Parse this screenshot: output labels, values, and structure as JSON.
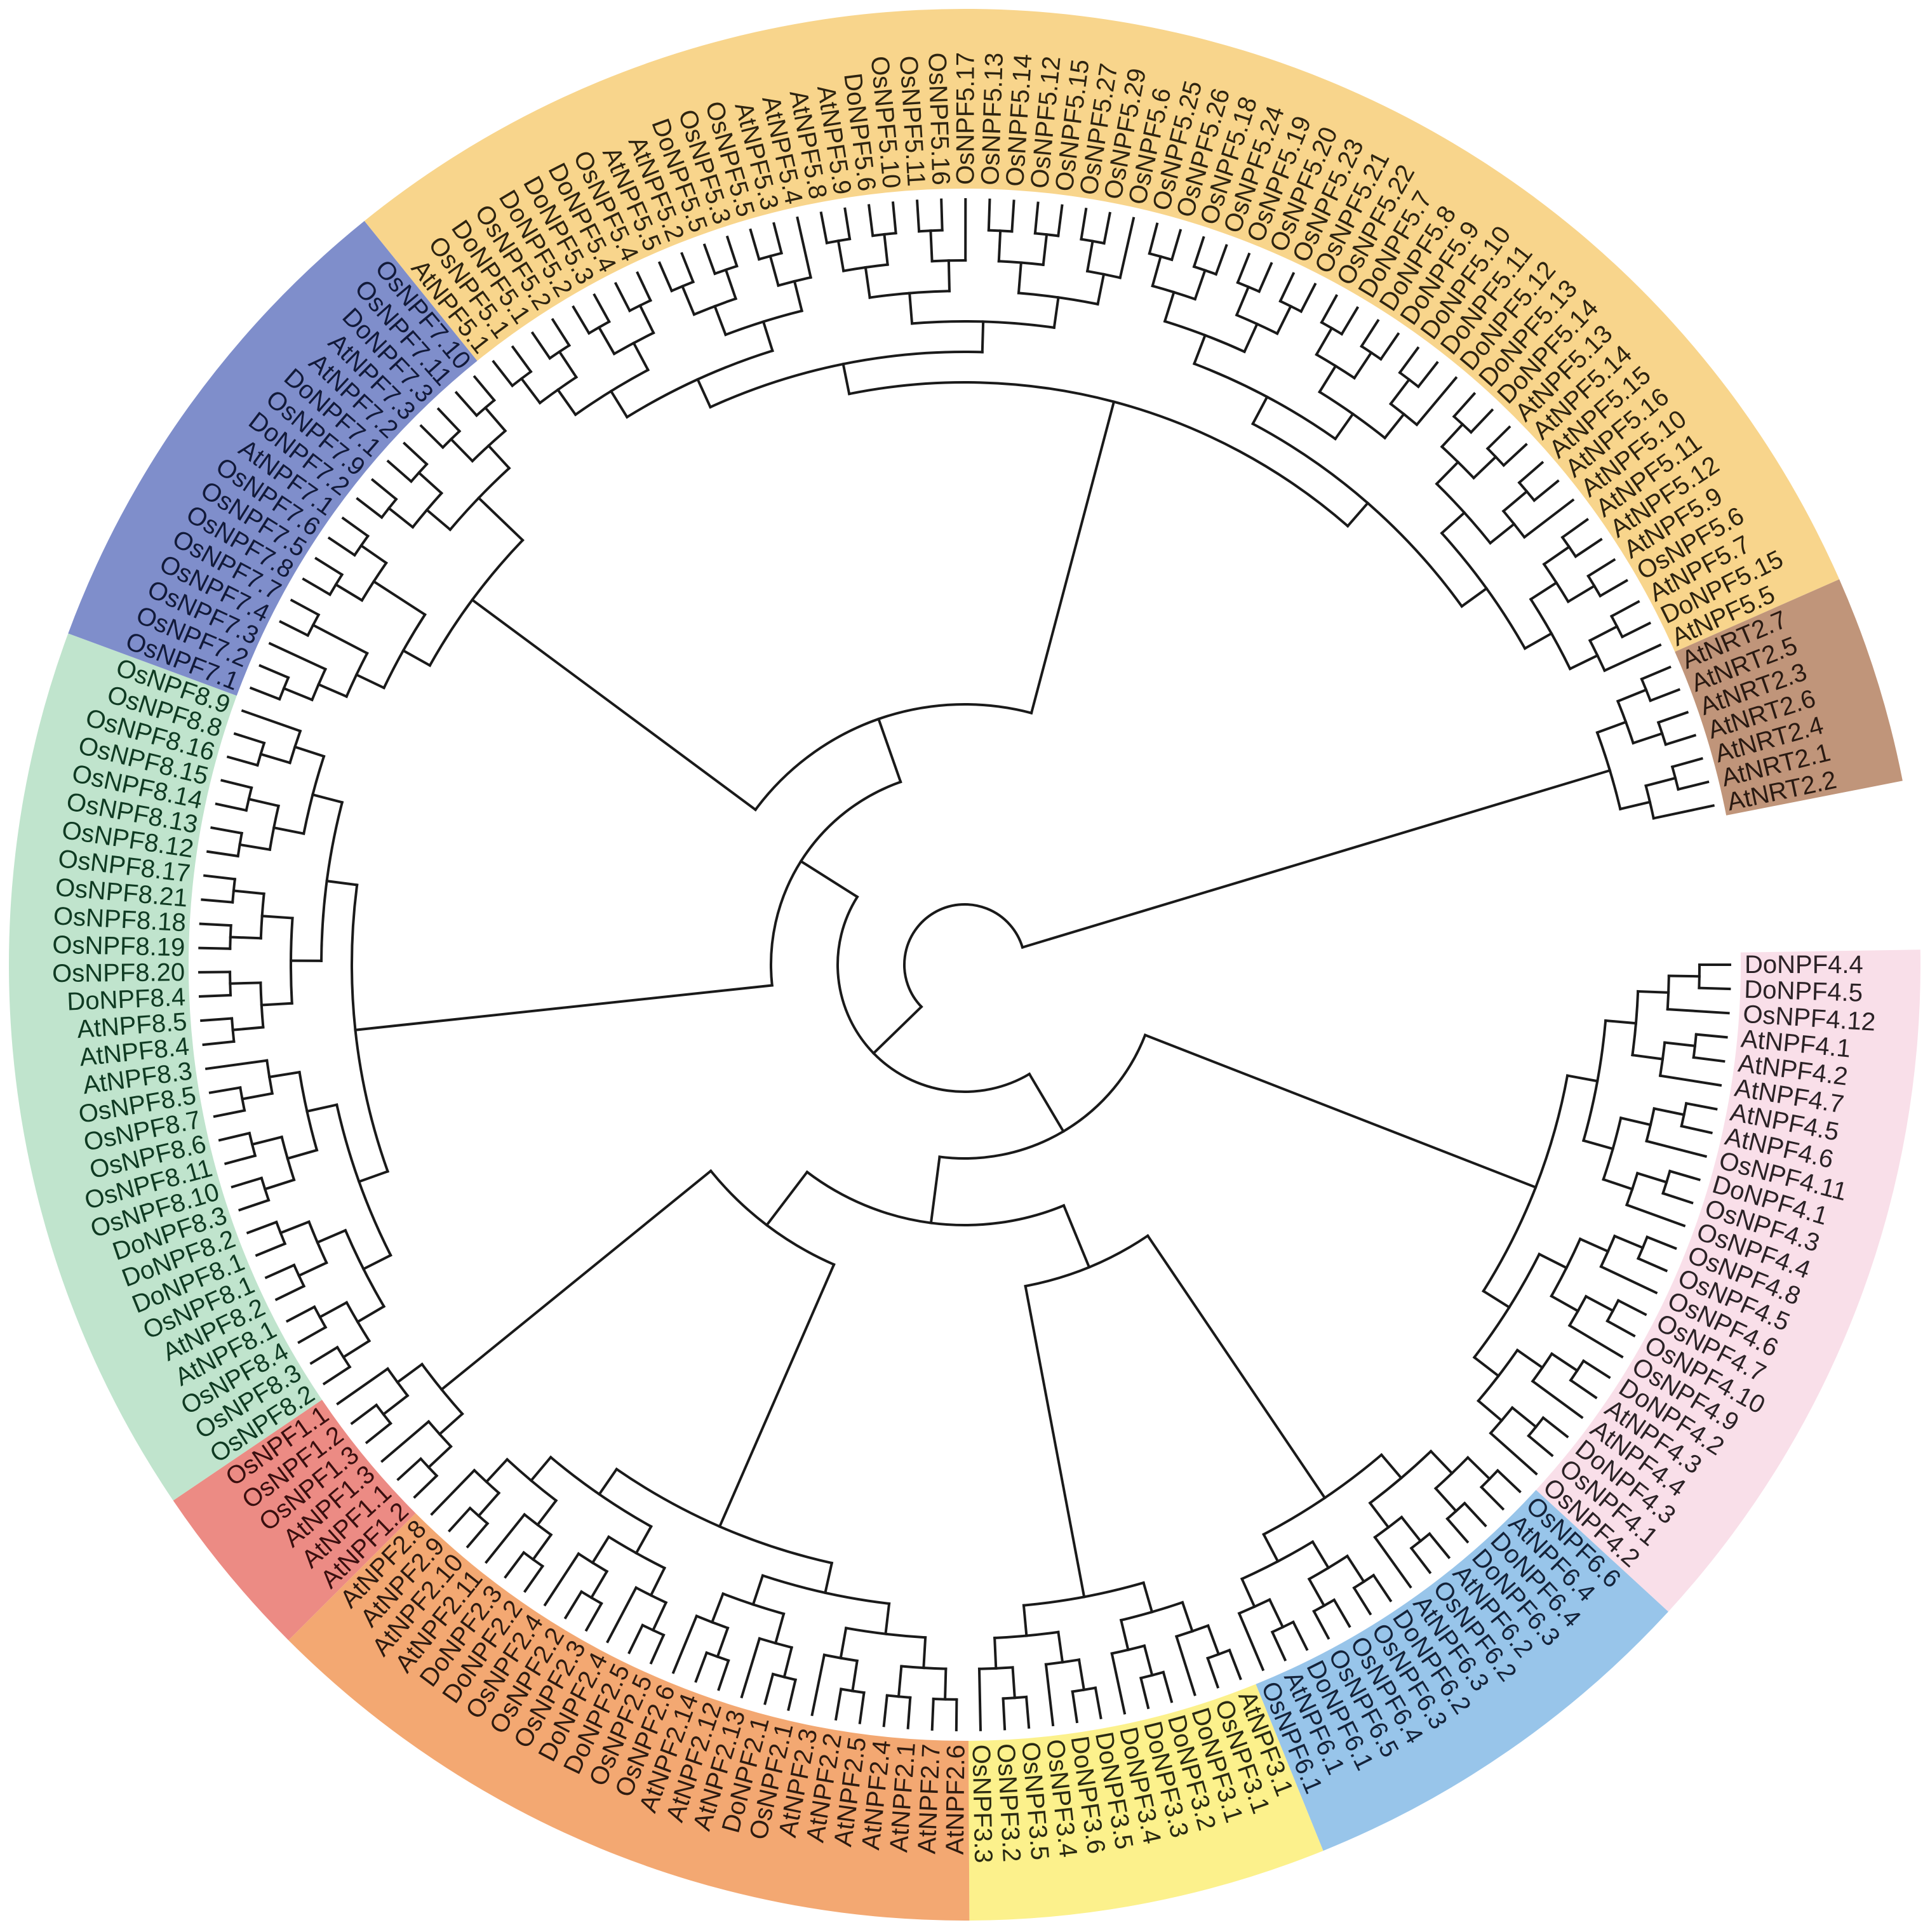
{
  "clades": [
    {
      "band_color": "#f9dfe9",
      "text_color": "#2b2226",
      "leaves": [
        "DoNPF4.4",
        "DoNPF4.5",
        "OsNPF4.12",
        "AtNPF4.1",
        "AtNPF4.2",
        "AtNPF4.7",
        "AtNPF4.5",
        "AtNPF4.6",
        "OsNPF4.11",
        "DoNPF4.1",
        "OsNPF4.3",
        "OsNPF4.4",
        "OsNPF4.8",
        "OsNPF4.5",
        "OsNPF4.6",
        "OsNPF4.7",
        "OsNPF4.10",
        "OsNPF4.9",
        "DoNPF4.2",
        "AtNPF4.3",
        "AtNPF4.4",
        "DoNPF4.3",
        "OsNPF4.1",
        "OsNPF4.2"
      ]
    },
    {
      "band_color": "#98c5ea",
      "text_color": "#14233a",
      "leaves": [
        "OsNPF6.6",
        "AtNPF6.4",
        "DoNPF6.4",
        "DoNPF6.3",
        "AtNPF6.2",
        "OsNPF6.2",
        "AtNPF6.3",
        "DoNPF6.2",
        "OsNPF6.3",
        "OsNPF6.4",
        "OsNPF6.5",
        "DoNPF6.1",
        "AtNPF6.1",
        "OsNPF6.1"
      ]
    },
    {
      "band_color": "#fcf18c",
      "text_color": "#2a2a12",
      "leaves": [
        "AtNPF3.1",
        "OsNPF3.1",
        "DoNPF3.1",
        "DoNPF3.2",
        "DoNPF3.3",
        "DoNPF3.4",
        "DoNPF3.5",
        "DoNPF3.6",
        "OsNPF3.4",
        "OsNPF3.5",
        "OsNPF3.2",
        "OsNPF3.3"
      ]
    },
    {
      "band_color": "#f3a872",
      "text_color": "#2e1b10",
      "leaves": [
        "AtNPF2.6",
        "AtNPF2.7",
        "AtNPF2.1",
        "AtNPF2.4",
        "AtNPF2.5",
        "AtNPF2.2",
        "AtNPF2.3",
        "OsNPF2.1",
        "DoNPF2.1",
        "AtNPF2.13",
        "AtNPF2.12",
        "AtNPF2.14",
        "OsNPF2.6",
        "OsNPF2.5",
        "DoNPF2.5",
        "DoNPF2.4",
        "OsNPF2.3",
        "OsNPF2.2",
        "OsNPF2.4",
        "DoNPF2.2",
        "DoNPF2.3",
        "AtNPF2.11",
        "AtNPF2.10",
        "AtNPF2.9",
        "AtNPF2.8"
      ]
    },
    {
      "band_color": "#ec8b84",
      "text_color": "#3a0f0f",
      "leaves": [
        "AtNPF1.2",
        "AtNPF1.1",
        "AtNPF1.3",
        "OsNPF1.3",
        "OsNPF1.2",
        "OsNPF1.1"
      ]
    },
    {
      "band_color": "#c0e4cd",
      "text_color": "#0f3a22",
      "leaves": [
        "OsNPF8.2",
        "OsNPF8.3",
        "OsNPF8.4",
        "AtNPF8.1",
        "AtNPF8.2",
        "OsNPF8.1",
        "DoNPF8.1",
        "DoNPF8.2",
        "DoNPF8.3",
        "OsNPF8.10",
        "OsNPF8.11",
        "OsNPF8.6",
        "OsNPF8.7",
        "OsNPF8.5",
        "AtNPF8.3",
        "AtNPF8.4",
        "AtNPF8.5",
        "DoNPF8.4",
        "OsNPF8.20",
        "OsNPF8.19",
        "OsNPF8.18",
        "OsNPF8.21",
        "OsNPF8.17",
        "OsNPF8.12",
        "OsNPF8.13",
        "OsNPF8.14",
        "OsNPF8.15",
        "OsNPF8.16",
        "OsNPF8.8",
        "OsNPF8.9"
      ]
    },
    {
      "band_color": "#7f8ecb",
      "text_color": "#121a3a",
      "leaves": [
        "OsNPF7.1",
        "OsNPF7.2",
        "OsNPF7.3",
        "OsNPF7.4",
        "OsNPF7.7",
        "OsNPF7.8",
        "OsNPF7.5",
        "OsNPF7.6",
        "AtNPF7.1",
        "DoNPF7.2",
        "OsNPF7.9",
        "DoNPF7.1",
        "AtNPF7.2",
        "AtNPF7.3",
        "DoNPF7.3",
        "OsNPF7.11",
        "OsNPF7.10"
      ]
    },
    {
      "band_color": "#f8d58c",
      "text_color": "#2e2410",
      "leaves": [
        "AtNPF5.1",
        "OsNPF5.1",
        "DoNPF5.1",
        "OsNPF5.2",
        "DoNPF5.2",
        "DoNPF5.3",
        "DoNPF5.4",
        "OsNPF5.4",
        "AtNPF5.5",
        "AtNPF5.2",
        "DoNPF5.5",
        "OsNPF5.3",
        "OsNPF5.5",
        "AtNPF5.3",
        "AtNPF5.4",
        "AtNPF5.8",
        "AtNPF5.9",
        "DoNPF5.6",
        "OsNPF5.10",
        "OsNPF5.11",
        "OsNPF5.16",
        "OsNPF5.17",
        "OsNPF5.13",
        "OsNPF5.14",
        "OsNPF5.12",
        "OsNPF5.15",
        "OsNPF5.27",
        "OsNPF5.29",
        "OsNPF5.6",
        "OsNPF5.25",
        "OsNPF5.26",
        "OsNPF5.18",
        "OsNPF5.24",
        "OsNPF5.19",
        "OsNPF5.20",
        "OsNPF5.23",
        "OsNPF5.21",
        "OsNPF5.22",
        "DoNPF5.7",
        "DoNPF5.8",
        "DoNPF5.9",
        "DoNPF5.10",
        "DoNPF5.11",
        "DoNPF5.12",
        "DoNPF5.13",
        "DoNPF5.14",
        "AtNPF5.13",
        "AtNPF5.14",
        "AtNPF5.15",
        "AtNPF5.16",
        "AtNPF5.10",
        "AtNPF5.11",
        "AtNPF5.12",
        "AtNPF5.9",
        "OsNPF5.6",
        "AtNPF5.7",
        "DoNPF5.15",
        "AtNPF5.5"
      ]
    },
    {
      "band_color": "#c0957a",
      "text_color": "#2a1a12",
      "leaves": [
        "AtNRT2.7",
        "AtNRT2.5",
        "AtNRT2.3",
        "AtNRT2.6",
        "AtNRT2.4",
        "AtNRT2.1",
        "AtNRT2.2"
      ]
    }
  ]
}
